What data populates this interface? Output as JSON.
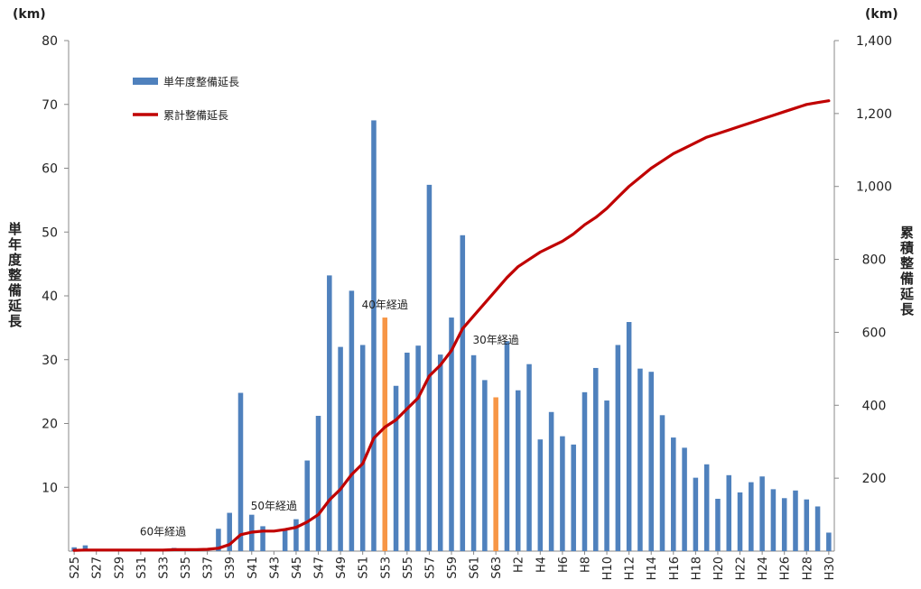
{
  "chart_data": {
    "type": "bar",
    "ylabel_left": "単年度整備延長",
    "ylabel_right": "累積整備延長",
    "unit_left": "(km)",
    "unit_right": "(km)",
    "ylim_left": [
      0,
      80
    ],
    "ylim_right": [
      0,
      1400
    ],
    "left_ticks": [
      "10",
      "20",
      "30",
      "40",
      "50",
      "60",
      "70",
      "80"
    ],
    "right_ticks": [
      "200",
      "400",
      "600",
      "800",
      "1,000",
      "1,200",
      "1,400"
    ],
    "legend_position": "top-left",
    "x_tick_labels": [
      "S25",
      "S27",
      "S29",
      "S31",
      "S33",
      "S35",
      "S37",
      "S39",
      "S41",
      "S43",
      "S45",
      "S47",
      "S49",
      "S51",
      "S53",
      "S55",
      "S57",
      "S59",
      "S61",
      "S63",
      "H2",
      "H4",
      "H6",
      "H8",
      "H10",
      "H12",
      "H14",
      "H16",
      "H18",
      "H20",
      "H22",
      "H24",
      "H26",
      "H28",
      "H30"
    ],
    "categories": [
      "S25",
      "S26",
      "S27",
      "S28",
      "S29",
      "S30",
      "S31",
      "S32",
      "S33",
      "S34",
      "S35",
      "S36",
      "S37",
      "S38",
      "S39",
      "S40",
      "S41",
      "S42",
      "S43",
      "S44",
      "S45",
      "S46",
      "S47",
      "S48",
      "S49",
      "S50",
      "S51",
      "S52",
      "S53",
      "S54",
      "S55",
      "S56",
      "S57",
      "S58",
      "S59",
      "S60",
      "S61",
      "S62",
      "S63",
      "H1",
      "H2",
      "H3",
      "H4",
      "H5",
      "H6",
      "H7",
      "H8",
      "H9",
      "H10",
      "H11",
      "H12",
      "H13",
      "H14",
      "H15",
      "H16",
      "H17",
      "H18",
      "H19",
      "H20",
      "H21",
      "H22",
      "H23",
      "H24",
      "H25",
      "H26",
      "H27",
      "H28",
      "H29",
      "H30"
    ],
    "series": [
      {
        "name": "単年度整備延長",
        "kind": "bar",
        "axis": "left",
        "color": "#4f81bd",
        "highlight_color": "#f79646",
        "highlight_indices": [
          28,
          38
        ],
        "values": [
          0.6,
          0.9,
          0,
          0,
          0,
          0,
          0,
          0,
          0.3,
          0.5,
          0,
          0,
          0,
          3.5,
          6,
          24.8,
          5.7,
          3.9,
          0,
          3.4,
          5,
          14.2,
          21.2,
          43.2,
          32,
          40.8,
          32.3,
          67.5,
          36.6,
          25.9,
          31.1,
          32.2,
          57.4,
          30.8,
          36.6,
          49.5,
          30.7,
          26.8,
          24.1,
          32.9,
          25.2,
          29.3,
          17.5,
          21.8,
          18,
          16.7,
          24.9,
          28.7,
          23.6,
          32.3,
          35.9,
          28.6,
          28.1,
          21.3,
          17.8,
          16.2,
          11.5,
          13.6,
          8.2,
          11.9,
          9.2,
          10.8,
          11.7,
          9.7,
          8.3,
          9.5,
          8.1,
          7,
          2.9
        ]
      },
      {
        "name": "累計整備延長",
        "kind": "line",
        "axis": "right",
        "color": "#c00000",
        "values": [
          2,
          3,
          3,
          3,
          3,
          3,
          3,
          3,
          3,
          4,
          4,
          4,
          5,
          8,
          18,
          45,
          52,
          55,
          55,
          59,
          65,
          80,
          100,
          140,
          170,
          210,
          240,
          310,
          340,
          360,
          390,
          420,
          480,
          510,
          550,
          610,
          645,
          680,
          715,
          750,
          780,
          800,
          820,
          835,
          850,
          870,
          895,
          915,
          940,
          970,
          1000,
          1025,
          1050,
          1070,
          1090,
          1105,
          1120,
          1135,
          1145,
          1155,
          1165,
          1175,
          1185,
          1195,
          1205,
          1215,
          1225,
          1230,
          1235
        ]
      }
    ],
    "annotations": [
      {
        "text": "60年経過",
        "category": "S33",
        "y": 2.5,
        "anchor": "middle"
      },
      {
        "text": "50年経過",
        "category": "S43",
        "y": 6.5,
        "anchor": "middle"
      },
      {
        "text": "40年経過",
        "category": "S53",
        "y": 38,
        "anchor": "middle"
      },
      {
        "text": "30年経過",
        "category": "S63",
        "y": 32.5,
        "anchor": "middle"
      }
    ]
  }
}
